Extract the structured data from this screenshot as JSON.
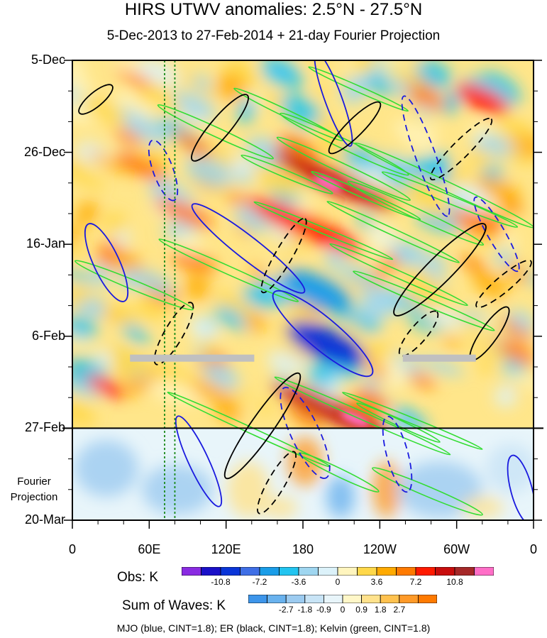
{
  "title": "HIRS UTWV anomalies: 2.5°N - 27.5°N",
  "subtitle": "5-Dec-2013 to 27-Feb-2014 + 21-day Fourier Projection",
  "chart_data": {
    "type": "heatmap",
    "description": "Hovmoller of upper tropospheric water vapor anomalies with filtered wave contours",
    "x_axis": {
      "tick_labels": [
        "0",
        "60E",
        "120E",
        "180",
        "120W",
        "60W",
        "0"
      ],
      "range_deg_east": [
        0,
        360
      ]
    },
    "y_axis": {
      "tick_labels": [
        "5-Dec",
        "26-Dec",
        "16-Jan",
        "6-Feb",
        "27-Feb",
        "20-Mar"
      ],
      "range_days_from_start": [
        0,
        105
      ],
      "observation_end_day": 84
    },
    "projection_label": [
      "Fourier",
      "Projection"
    ],
    "obs_colorbar": {
      "label": "Obs: K",
      "tick_labels": [
        "-10.8",
        "-7.2",
        "-3.6",
        "0",
        "3.6",
        "7.2",
        "10.8"
      ],
      "levels": [
        -12.6,
        -10.8,
        -9.0,
        -7.2,
        -5.4,
        -3.6,
        -1.8,
        0,
        1.8,
        3.6,
        5.4,
        7.2,
        9.0,
        10.8,
        12.6
      ],
      "colors": [
        "#8a2be2",
        "#1a10c8",
        "#0a35d8",
        "#3f6fe6",
        "#1a9de8",
        "#22c4f0",
        "#9fd6f0",
        "#dcf2fa",
        "#fff5be",
        "#ffd84a",
        "#ffaa00",
        "#ff7a00",
        "#ff1a00",
        "#c80d0d",
        "#a52828",
        "#ff6ec7"
      ]
    },
    "sum_colorbar": {
      "label": "Sum of Waves: K",
      "tick_labels": [
        "-2.7",
        "-1.8",
        "-0.9",
        "0",
        "0.9",
        "1.8",
        "2.7"
      ],
      "levels": [
        -3.6,
        -2.7,
        -1.8,
        -0.9,
        0,
        0.9,
        1.8,
        2.7,
        3.6
      ],
      "colors": [
        "#3d95ea",
        "#69b2ee",
        "#9ccbf0",
        "#c8e4f6",
        "#e8f5fa",
        "#fff7c8",
        "#ffe28c",
        "#ffc24f",
        "#ff9a28",
        "#ff7a00"
      ]
    },
    "contours": [
      {
        "name": "MJO",
        "color": "#1a1adf",
        "cint": 1.8
      },
      {
        "name": "ER",
        "color": "#000000",
        "cint": 1.8
      },
      {
        "name": "Kelvin",
        "color": "#33dd33",
        "cint": 1.8
      }
    ],
    "reference_longitudes_deg_east": [
      72,
      80
    ],
    "gray_bars": [
      {
        "lon_start": 45,
        "lon_end": 142,
        "day": 68
      },
      {
        "lon_start": 258,
        "lon_end": 315,
        "day": 68
      }
    ]
  },
  "footer": "MJO (blue, CINT=1.8); ER (black, CINT=1.8); Kelvin (green, CINT=1.8)"
}
